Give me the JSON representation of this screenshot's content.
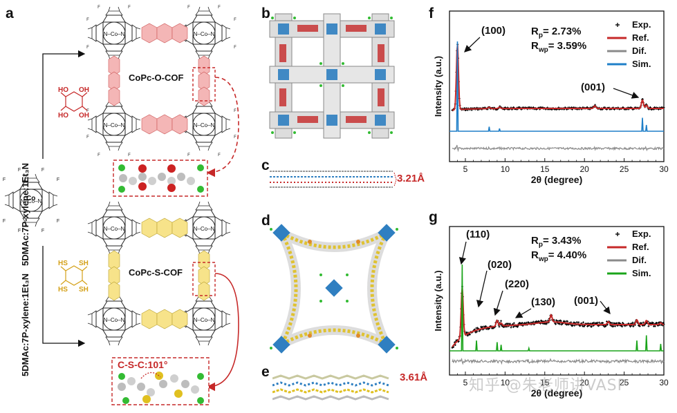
{
  "panels": {
    "a": "a",
    "b": "b",
    "c": "c",
    "d": "d",
    "e": "e",
    "f": "f",
    "g": "g"
  },
  "panel_a": {
    "reaction_top": "5DMAc:7P-xylene:1Et₃N",
    "reaction_bottom": "5DMAc:7P-xylene:1Et₃N",
    "cof_top": "CoPc-O-COF",
    "cof_bottom": "CoPc-S-COF",
    "monomer_center": "Co",
    "linker_top_groups": [
      "HO",
      "OH",
      "HO",
      "OH"
    ],
    "linker_bottom_groups": [
      "HS",
      "SH",
      "HS",
      "SH"
    ],
    "angle_label": "C-S-C:101°",
    "metal_label": "Co",
    "colors": {
      "oxygen_highlight": "#f4b6b6",
      "sulfur_highlight": "#f7e38a",
      "accent_red": "#c62828",
      "oxygen_atom": "#cc2222",
      "sulfur_atom": "#e0c020",
      "fluorine_atom": "#33bb33"
    }
  },
  "panel_c": {
    "spacing": "3.21Å"
  },
  "panel_e": {
    "spacing": "3.61Å"
  },
  "chart_data": [
    {
      "id": "f",
      "type": "line",
      "xlabel": "2θ (degree)",
      "ylabel": "Intensity (a.u.)",
      "xlim": [
        3,
        30
      ],
      "xticks": [
        "5",
        "10",
        "15",
        "20",
        "25",
        "30"
      ],
      "stats": {
        "rp": "R",
        "rp_sub": "p",
        "rp_val": "= 2.73%",
        "rwp": "R",
        "rwp_sub": "wp",
        "rwp_val": "= 3.59%"
      },
      "annotations": [
        "(100)",
        "(001)"
      ],
      "legend": [
        "Exp.",
        "Ref.",
        "Dif.",
        "Sim."
      ],
      "series_colors": {
        "Exp.": "#000000",
        "Ref.": "#c62828",
        "Dif.": "#8a8a8a",
        "Sim.": "#1f7fc8"
      },
      "peaks": [
        {
          "x": 4.0,
          "exp_height": 1.0,
          "sim_height": 1.0
        },
        {
          "x": 8.0,
          "exp_height": 0.02,
          "sim_height": 0.05
        },
        {
          "x": 9.3,
          "exp_height": 0.02,
          "sim_height": 0.03
        },
        {
          "x": 21.3,
          "exp_height": 0.04,
          "sim_height": 0.0
        },
        {
          "x": 27.3,
          "exp_height": 0.13,
          "sim_height": 0.15
        },
        {
          "x": 27.8,
          "exp_height": 0.05,
          "sim_height": 0.07
        }
      ]
    },
    {
      "id": "g",
      "type": "line",
      "xlabel": "2θ (degree)",
      "ylabel": "Intensity (a.u.)",
      "xlim": [
        3,
        30
      ],
      "xticks": [
        "5",
        "10",
        "15",
        "20",
        "25",
        "30"
      ],
      "stats": {
        "rp": "R",
        "rp_sub": "p",
        "rp_val": "= 3.43%",
        "rwp": "R",
        "rwp_sub": "wp",
        "rwp_val": "= 4.40%"
      },
      "annotations": [
        "(110)",
        "(020)",
        "(220)",
        "(130)",
        "(001)"
      ],
      "legend": [
        "Exp.",
        "Ref.",
        "Dif.",
        "Sim."
      ],
      "series_colors": {
        "Exp.": "#000000",
        "Ref.": "#c62828",
        "Dif.": "#8a8a8a",
        "Sim.": "#1aa41a"
      },
      "peaks": [
        {
          "x": 4.6,
          "exp_height": 0.85,
          "sim_height": 1.0
        },
        {
          "x": 6.4,
          "exp_height": 0.0,
          "sim_height": 0.12
        },
        {
          "x": 9.0,
          "exp_height": 0.1,
          "sim_height": 0.1
        },
        {
          "x": 9.5,
          "exp_height": 0.05,
          "sim_height": 0.07
        },
        {
          "x": 13.0,
          "exp_height": 0.0,
          "sim_height": 0.03
        },
        {
          "x": 15.8,
          "exp_height": 0.12,
          "sim_height": 0.0
        },
        {
          "x": 23.0,
          "exp_height": 0.05,
          "sim_height": 0.0
        },
        {
          "x": 26.6,
          "exp_height": 0.08,
          "sim_height": 0.12
        },
        {
          "x": 27.8,
          "exp_height": 0.07,
          "sim_height": 0.18
        },
        {
          "x": 29.6,
          "exp_height": 0.03,
          "sim_height": 0.08
        }
      ]
    }
  ],
  "watermark": "知乎 @朱老师讲VASP"
}
